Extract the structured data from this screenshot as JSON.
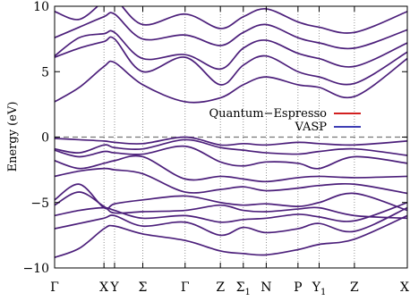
{
  "chart_data": {
    "type": "line",
    "ylabel": "Energy (eV)",
    "ylim": [
      -10,
      10
    ],
    "y_ticks": [
      -10,
      -5,
      0,
      5,
      10
    ],
    "fermi_level": 0,
    "k_points": [
      {
        "label": "Γ",
        "sub": "",
        "pos": 0.0
      },
      {
        "label": "X",
        "sub": "",
        "pos": 0.14
      },
      {
        "label": "Y",
        "sub": "",
        "pos": 0.17
      },
      {
        "label": "Σ",
        "sub": "",
        "pos": 0.25
      },
      {
        "label": "Γ",
        "sub": "",
        "pos": 0.37
      },
      {
        "label": "Z",
        "sub": "",
        "pos": 0.47
      },
      {
        "label": "Σ",
        "sub": "1",
        "pos": 0.535
      },
      {
        "label": "N",
        "sub": "",
        "pos": 0.6
      },
      {
        "label": "P",
        "sub": "",
        "pos": 0.69
      },
      {
        "label": "Y",
        "sub": "1",
        "pos": 0.75
      },
      {
        "label": "Z",
        "sub": "",
        "pos": 0.85
      },
      {
        "label": "X",
        "sub": "",
        "pos": 1.0
      }
    ],
    "legend": {
      "placement": "right-middle",
      "entries": [
        {
          "name": "Quantum−Espresso",
          "color": "#cc0000"
        },
        {
          "name": "VASP",
          "color": "#2222aa"
        }
      ]
    },
    "band_color": "#4b1e7a",
    "bands": [
      {
        "x": [
          0,
          0.07,
          0.14,
          0.17,
          0.25,
          0.37,
          0.47,
          0.535,
          0.6,
          0.69,
          0.75,
          0.85,
          1.0
        ],
        "y": [
          -9.2,
          -8.5,
          -7.0,
          -6.8,
          -7.4,
          -7.9,
          -8.7,
          -8.9,
          -9.0,
          -8.6,
          -8.2,
          -7.8,
          -6.0
        ]
      },
      {
        "x": [
          0,
          0.07,
          0.14,
          0.17,
          0.25,
          0.37,
          0.47,
          0.535,
          0.6,
          0.69,
          0.75,
          0.85,
          1.0
        ],
        "y": [
          -7.0,
          -6.6,
          -6.2,
          -6.0,
          -6.8,
          -6.5,
          -7.5,
          -6.9,
          -7.3,
          -7.0,
          -6.6,
          -7.2,
          -5.4
        ]
      },
      {
        "x": [
          0,
          0.07,
          0.14,
          0.17,
          0.25,
          0.37,
          0.47,
          0.535,
          0.6,
          0.69,
          0.75,
          0.85,
          1.0
        ],
        "y": [
          -6.0,
          -5.6,
          -5.4,
          -5.6,
          -6.2,
          -6.0,
          -6.5,
          -6.3,
          -6.2,
          -5.9,
          -6.1,
          -6.4,
          -5.0
        ]
      },
      {
        "x": [
          0,
          0.07,
          0.14,
          0.17,
          0.25,
          0.37,
          0.47,
          0.535,
          0.6,
          0.69,
          0.75,
          0.85,
          1.0
        ],
        "y": [
          -5.2,
          -4.2,
          -5.3,
          -5.8,
          -5.7,
          -5.6,
          -5.2,
          -5.6,
          -5.7,
          -5.5,
          -5.4,
          -6.0,
          -6.2
        ]
      },
      {
        "x": [
          0,
          0.07,
          0.14,
          0.17,
          0.25,
          0.37,
          0.47,
          0.535,
          0.6,
          0.69,
          0.75,
          0.85,
          1.0
        ],
        "y": [
          -4.8,
          -3.6,
          -5.4,
          -5.1,
          -4.8,
          -4.5,
          -5.0,
          -5.2,
          -5.1,
          -5.3,
          -5.0,
          -4.3,
          -5.6
        ]
      },
      {
        "x": [
          0,
          0.07,
          0.14,
          0.17,
          0.25,
          0.37,
          0.47,
          0.535,
          0.6,
          0.69,
          0.75,
          0.85,
          1.0
        ],
        "y": [
          -3.0,
          -2.6,
          -2.4,
          -2.5,
          -2.8,
          -4.2,
          -4.0,
          -3.8,
          -4.1,
          -3.9,
          -3.7,
          -3.6,
          -4.3
        ]
      },
      {
        "x": [
          0,
          0.07,
          0.14,
          0.17,
          0.25,
          0.37,
          0.47,
          0.535,
          0.6,
          0.69,
          0.75,
          0.85,
          1.0
        ],
        "y": [
          -1.8,
          -2.4,
          -2.0,
          -1.8,
          -1.5,
          -3.2,
          -3.0,
          -3.2,
          -3.4,
          -3.1,
          -3.0,
          -3.1,
          -3.0
        ]
      },
      {
        "x": [
          0,
          0.07,
          0.14,
          0.17,
          0.25,
          0.37,
          0.47,
          0.535,
          0.6,
          0.69,
          0.75,
          0.85,
          1.0
        ],
        "y": [
          -1.0,
          -1.5,
          -1.1,
          -1.2,
          -1.3,
          -0.7,
          -1.9,
          -2.2,
          -1.9,
          -2.0,
          -2.4,
          -1.5,
          -2.0
        ]
      },
      {
        "x": [
          0,
          0.07,
          0.14,
          0.17,
          0.25,
          0.37,
          0.47,
          0.535,
          0.6,
          0.69,
          0.75,
          0.85,
          1.0
        ],
        "y": [
          -0.9,
          -1.2,
          -0.6,
          -0.8,
          -0.9,
          -0.2,
          -0.8,
          -1.0,
          -1.2,
          -1.3,
          -1.1,
          -0.9,
          -1.4
        ]
      },
      {
        "x": [
          0,
          0.07,
          0.14,
          0.17,
          0.25,
          0.37,
          0.47,
          0.535,
          0.6,
          0.69,
          0.75,
          0.85,
          1.0
        ],
        "y": [
          -0.1,
          -0.2,
          -0.3,
          -0.4,
          -0.5,
          0.0,
          -0.6,
          -0.5,
          -0.6,
          -0.4,
          -0.5,
          -0.6,
          -0.3
        ]
      },
      {
        "x": [
          0,
          0.07,
          0.14,
          0.17,
          0.25,
          0.37,
          0.47,
          0.535,
          0.6,
          0.69,
          0.75,
          0.85,
          1.0
        ],
        "y": [
          2.7,
          3.8,
          5.4,
          5.7,
          4.0,
          2.7,
          3.0,
          4.0,
          4.6,
          4.0,
          3.8,
          3.1,
          6.0
        ]
      },
      {
        "x": [
          0,
          0.07,
          0.14,
          0.17,
          0.25,
          0.37,
          0.47,
          0.535,
          0.6,
          0.69,
          0.75,
          0.85,
          1.0
        ],
        "y": [
          6.1,
          6.8,
          7.3,
          7.5,
          5.0,
          6.1,
          4.0,
          5.5,
          6.2,
          5.0,
          4.6,
          4.1,
          6.5
        ]
      },
      {
        "x": [
          0,
          0.07,
          0.14,
          0.17,
          0.25,
          0.37,
          0.47,
          0.535,
          0.6,
          0.69,
          0.75,
          0.85,
          1.0
        ],
        "y": [
          6.2,
          7.6,
          7.9,
          8.0,
          6.0,
          6.3,
          5.2,
          6.8,
          7.4,
          6.4,
          6.0,
          5.4,
          7.2
        ]
      },
      {
        "x": [
          0,
          0.07,
          0.14,
          0.17,
          0.25,
          0.37,
          0.47,
          0.535,
          0.6,
          0.69,
          0.75,
          0.85,
          1.0
        ],
        "y": [
          7.6,
          8.4,
          9.2,
          9.4,
          7.5,
          7.8,
          7.0,
          8.0,
          8.6,
          7.6,
          7.2,
          6.8,
          8.2
        ]
      },
      {
        "x": [
          0,
          0.07,
          0.14,
          0.17,
          0.25,
          0.37,
          0.47,
          0.535,
          0.6,
          0.69,
          0.75,
          0.85,
          1.0
        ],
        "y": [
          9.6,
          9.0,
          10.4,
          10.6,
          8.6,
          9.4,
          8.3,
          9.2,
          9.8,
          8.8,
          8.4,
          8.0,
          9.6
        ]
      }
    ]
  }
}
